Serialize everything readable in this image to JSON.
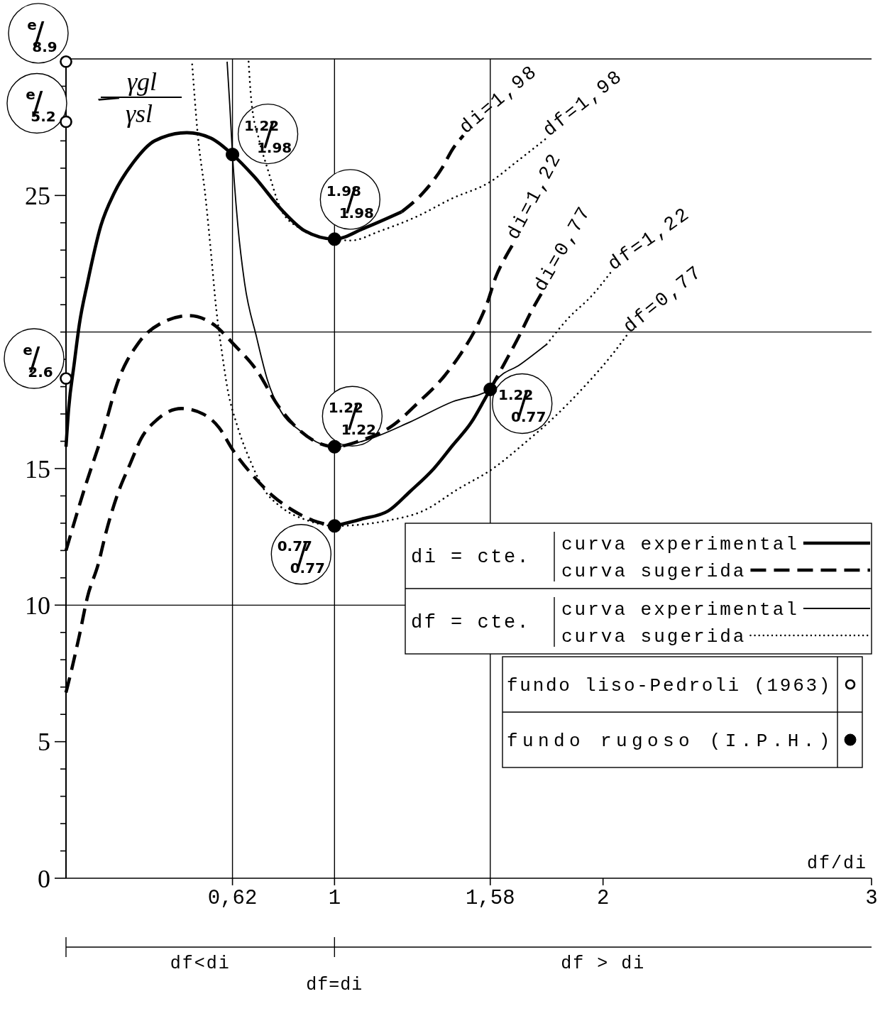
{
  "chart_data": {
    "type": "line",
    "xlabel": "df/di",
    "ylabel": "γgl/γsl",
    "xlim": [
      0,
      3
    ],
    "ylim": [
      0,
      30
    ],
    "xticks": [
      {
        "value": 0.62,
        "label": "0,62"
      },
      1,
      {
        "value": 1.58,
        "label": "1,58"
      },
      2,
      3
    ],
    "yticks": [
      0,
      {
        "value": 1,
        "label": null
      },
      {
        "value": 2,
        "label": null
      },
      {
        "value": 3,
        "label": null
      },
      {
        "value": 4,
        "label": null
      },
      5,
      {
        "value": 6,
        "label": null
      },
      {
        "value": 7,
        "label": null
      },
      {
        "value": 8,
        "label": null
      },
      {
        "value": 9,
        "label": null
      },
      10,
      {
        "value": 11,
        "label": null
      },
      {
        "value": 12,
        "label": null
      },
      {
        "value": 13,
        "label": null
      },
      {
        "value": 14,
        "label": null
      },
      15,
      {
        "value": 16,
        "label": null
      },
      {
        "value": 17,
        "label": null
      },
      {
        "value": 18,
        "label": null
      },
      {
        "value": 19,
        "label": null
      },
      {
        "value": 20,
        "label": null
      },
      {
        "value": 21,
        "label": null
      },
      {
        "value": 22,
        "label": null
      },
      {
        "value": 23,
        "label": null
      },
      {
        "value": 24,
        "label": null
      },
      25,
      {
        "value": 26,
        "label": null
      },
      {
        "value": 27,
        "label": null
      },
      {
        "value": 28,
        "label": null
      },
      {
        "value": 29,
        "label": null
      }
    ],
    "legend": "bottom right",
    "series": [
      {
        "color": "#000000",
        "line_style": "solid",
        "x": [
          0,
          0.01,
          0.03,
          0.05,
          0.08,
          0.13,
          0.18,
          0.25,
          0.33,
          0.45,
          0.54,
          0.62,
          0.7,
          0.81,
          0.89,
          1,
          1.11,
          1.25
        ],
        "values": [
          15.8,
          17.2,
          18.8,
          20.3,
          21.8,
          23.9,
          25.1,
          26.2,
          27.0,
          27.3,
          27.1,
          26.5,
          25.7,
          24.4,
          23.7,
          23.4,
          23.8,
          24.4
        ]
      },
      {
        "name": "di=1,98",
        "color": "#000000",
        "line_style": "dashed",
        "x": [
          1.25,
          1.33,
          1.4,
          1.44,
          1.48
        ],
        "values": [
          24.4,
          25.1,
          26.0,
          26.7,
          27.2
        ]
      },
      {
        "name": "di=1,22",
        "color": "#000000",
        "line_style": "dashed",
        "x": [
          0,
          0.07,
          0.14,
          0.19,
          0.27,
          0.35,
          0.46,
          0.56,
          0.62,
          0.71,
          0.79,
          0.87,
          0.95,
          1,
          1.09,
          1.22,
          1.31,
          1.41,
          1.47,
          1.53,
          1.57,
          1.6,
          1.64,
          1.67
        ],
        "values": [
          12.0,
          14.3,
          16.4,
          18.1,
          19.6,
          20.3,
          20.6,
          20.2,
          19.6,
          18.6,
          17.3,
          16.4,
          15.9,
          15.8,
          16.0,
          16.6,
          17.4,
          18.4,
          19.2,
          20.2,
          21.1,
          22.0,
          22.8,
          23.3
        ]
      },
      {
        "color": "#000000",
        "line_style": "dashed",
        "x": [
          0,
          0.02,
          0.05,
          0.08,
          0.12,
          0.15,
          0.19,
          0.24,
          0.28,
          0.34,
          0.43,
          0.51,
          0.57,
          0.62,
          0.7,
          0.77,
          0.84,
          0.92,
          1
        ],
        "values": [
          6.8,
          7.6,
          8.9,
          10.3,
          11.5,
          12.7,
          14.0,
          15.2,
          16.1,
          16.8,
          17.2,
          17.0,
          16.5,
          15.7,
          14.7,
          14.0,
          13.5,
          13.1,
          12.9
        ]
      },
      {
        "color": "#000000",
        "line_style": "solid",
        "x": [
          1,
          1.1,
          1.2,
          1.28,
          1.37,
          1.44,
          1.51,
          1.56,
          1.58
        ],
        "values": [
          12.9,
          13.15,
          13.45,
          14.15,
          15.0,
          15.85,
          16.7,
          17.55,
          17.9
        ]
      },
      {
        "name": "di=0,77",
        "color": "#000000",
        "line_style": "dashed",
        "x": [
          1.58,
          1.63,
          1.69,
          1.73,
          1.77
        ],
        "values": [
          17.9,
          18.8,
          19.9,
          20.7,
          21.4
        ]
      },
      {
        "name": "df=1,98",
        "color": "#000000",
        "line_style": "dotted",
        "x": [
          0.68,
          0.69,
          0.72,
          0.75,
          0.8,
          0.87,
          0.96,
          1,
          1.06,
          1.17,
          1.3,
          1.44,
          1.58,
          1.68,
          1.79
        ],
        "values": [
          29.9,
          28.5,
          27.0,
          26.0,
          24.5,
          23.8,
          23.45,
          23.4,
          23.35,
          23.7,
          24.2,
          24.9,
          25.5,
          26.25,
          27.1
        ]
      },
      {
        "color": "#000000",
        "line_style": "solid",
        "x": [
          0.6,
          0.61,
          0.62,
          0.64,
          0.665,
          0.71,
          0.75,
          0.8,
          0.87,
          0.95,
          1,
          1.12,
          1.28,
          1.44,
          1.58,
          1.6,
          1.69,
          1.79
        ],
        "values": [
          29.9,
          28.3,
          26.5,
          23.9,
          21.8,
          19.8,
          18.25,
          17.1,
          16.4,
          15.9,
          15.8,
          16.05,
          16.7,
          17.45,
          17.9,
          18.2,
          18.8,
          19.55
        ]
      },
      {
        "name": "df=1,22",
        "color": "#000000",
        "line_style": "dotted",
        "x": [
          1.79,
          1.87,
          1.96,
          2.03
        ],
        "values": [
          19.55,
          20.5,
          21.35,
          22.2
        ]
      },
      {
        "name": "df=0,77",
        "color": "#000000",
        "line_style": "dotted",
        "x": [
          0.47,
          0.49,
          0.52,
          0.54,
          0.56,
          0.58,
          0.6,
          0.64,
          0.69,
          0.74,
          0.8,
          0.9,
          1,
          1.1,
          1.2,
          1.33,
          1.46,
          1.59,
          1.71,
          1.82,
          1.93,
          2.04,
          2.09
        ],
        "values": [
          29.8,
          27.3,
          24.9,
          22.9,
          20.8,
          19.3,
          18.0,
          16.5,
          15.2,
          14.2,
          13.6,
          13.1,
          12.9,
          12.95,
          13.1,
          13.45,
          14.25,
          15.0,
          15.95,
          16.9,
          18.0,
          19.25,
          19.9
        ]
      },
      {
        "name": "fundo liso-Pedroli (1963)",
        "type": "scatter",
        "marker": "circle",
        "color": "#000000",
        "x": [
          0,
          0,
          0
        ],
        "values": [
          29.9,
          27.7,
          18.3
        ]
      },
      {
        "name": "fundo rugoso (I.P.H.)",
        "type": "scatter",
        "marker": "circle",
        "color": "#000000",
        "x": [
          0.62,
          1,
          1,
          1,
          1.58
        ],
        "values": [
          26.5,
          23.4,
          15.8,
          12.9,
          17.9
        ]
      }
    ],
    "ref_lines": [
      {
        "axis": "x",
        "value": 0.62
      },
      {
        "axis": "x",
        "value": 1
      },
      {
        "axis": "x",
        "value": 1.58
      },
      {
        "axis": "y",
        "value": 20
      },
      {
        "axis": "y",
        "value": 10
      }
    ],
    "annotations": [
      "di = cte.",
      "curva experimental",
      "curva sugerida",
      "df = cte.",
      "curva experimental",
      "curva sugerida",
      "df<di",
      "df > di",
      {
        "text": "df=di",
        "x": 1
      },
      {
        "text": "1.22/1.98",
        "x": 0.62,
        "y": 26.5
      },
      {
        "text": "1.98/1.98",
        "x": 1,
        "y": 23.4
      },
      {
        "text": "1.22/1.22",
        "x": 1,
        "y": 15.8
      },
      {
        "text": "1.22/0.77",
        "x": 1.58,
        "y": 17.9
      },
      {
        "text": "0.77/0.77",
        "x": 1,
        "y": 12.9
      },
      {
        "text": "e/8.9",
        "x": 0,
        "y": 29.9
      },
      {
        "text": "e/5.2",
        "x": 0,
        "y": 27.7
      },
      {
        "text": "e/2.6",
        "x": 0,
        "y": 18.3
      }
    ]
  }
}
